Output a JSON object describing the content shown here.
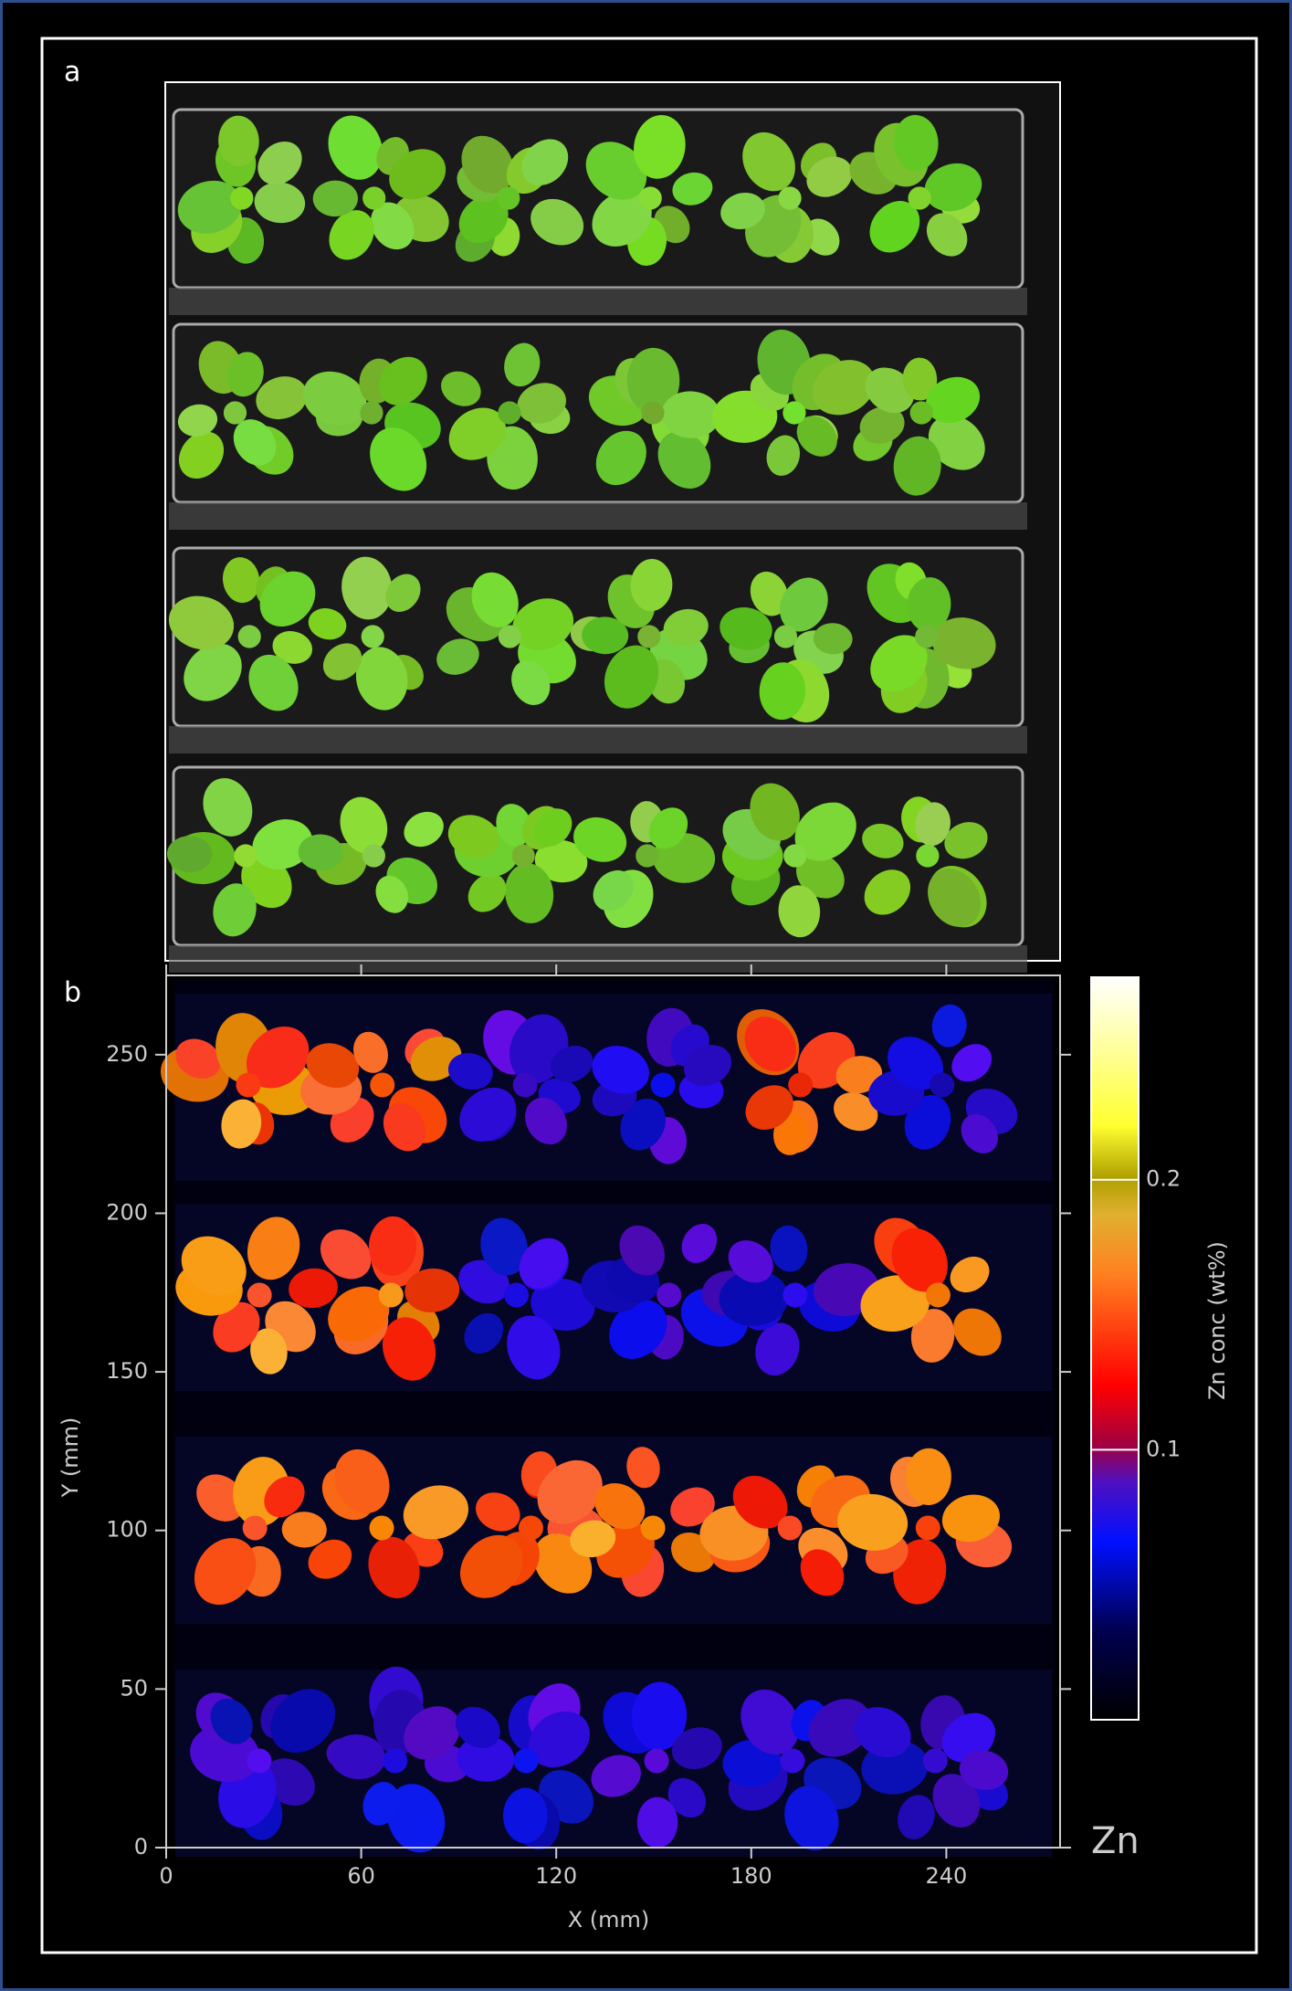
{
  "panel_a": {
    "label": "a"
  },
  "panel_b": {
    "label": "b",
    "x_label": "X (mm)",
    "y_label": "Y (mm)",
    "xlim": [
      0,
      275
    ],
    "xticks": [
      0,
      60,
      120,
      180,
      240
    ],
    "ylim": [
      0,
      275
    ],
    "yticks": [
      0,
      50,
      100,
      150,
      200,
      250
    ],
    "colorbar": {
      "label": "Zn conc (wt%)",
      "lim": [
        0,
        0.275
      ],
      "ticks": [
        0.1,
        0.2
      ]
    },
    "element": "Zn"
  }
}
